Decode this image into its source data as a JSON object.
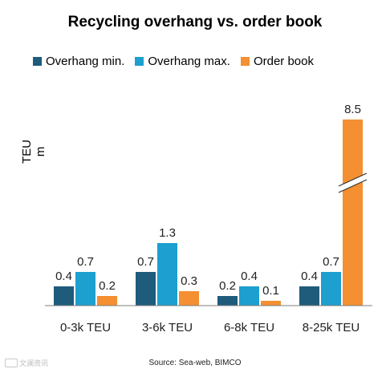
{
  "chart_data": {
    "type": "bar",
    "title": "Recycling overhang vs. order book",
    "ylabel": "TEU m",
    "xlabel": "",
    "categories": [
      "0-3k TEU",
      "3-6k TEU",
      "6-8k TEU",
      "8-25k TEU"
    ],
    "series": [
      {
        "name": "Overhang min.",
        "color": "#1f5b7a",
        "values": [
          0.4,
          0.7,
          0.2,
          0.4
        ]
      },
      {
        "name": "Overhang max.",
        "color": "#1d9fcf",
        "values": [
          0.7,
          1.3,
          0.4,
          0.7
        ]
      },
      {
        "name": "Order book",
        "color": "#f48f32",
        "values": [
          0.2,
          0.3,
          0.1,
          8.5
        ]
      }
    ],
    "value_labels": [
      [
        "0.4",
        "0.7",
        "0.2",
        "0.4"
      ],
      [
        "0.7",
        "1.3",
        "0.4",
        "0.7"
      ],
      [
        "0.2",
        "0.3",
        "0.1",
        "8.5"
      ]
    ],
    "axis_break": {
      "category": "8-25k TEU",
      "series": "Order book"
    },
    "legend_position": "top-left",
    "grid": false,
    "source": "Source: Sea-web, BIMCO"
  },
  "watermark": {
    "icon": "watermark-logo-icon",
    "text": "文澜资讯"
  }
}
